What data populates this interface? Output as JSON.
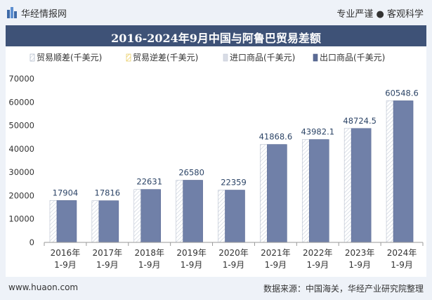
{
  "header": {
    "brand": "华经情报网",
    "tagline": "专业严谨 ● 客观科学"
  },
  "footer": {
    "url": "www.huaon.com",
    "source": "数据来源：中国海关，华经产业研究院整理"
  },
  "colors": {
    "title_bg": "#3e5277",
    "bar_fill": "#7080a8",
    "bar_shade": "#e6e9ef",
    "label_color": "#2d4567",
    "axis_color": "#555555",
    "grid_color": "#e6e6e6"
  },
  "chart_data": {
    "type": "bar",
    "title": "2016-2024年9月中国与阿鲁巴贸易差额",
    "legend": [
      {
        "name": "贸易顺差(千美元)",
        "style": "hatch"
      },
      {
        "name": "贸易逆差(千美元)",
        "style": "hatch-yellow"
      },
      {
        "name": "进口商品(千美元)",
        "style": "light"
      },
      {
        "name": "出口商品(千美元)",
        "style": "solid"
      }
    ],
    "legend_position": "top",
    "categories": [
      "2016年\n1-9月",
      "2017年\n1-9月",
      "2018年\n1-9月",
      "2019年\n1-9月",
      "2020年\n1-9月",
      "2021年\n1-9月",
      "2022年\n1-9月",
      "2023年\n1-9月",
      "2024年\n1-9月"
    ],
    "series": [
      {
        "name": "贸易顺差(千美元)",
        "values": [
          17904,
          17816,
          22631,
          26580,
          22359,
          41868.6,
          43982.1,
          48724.5,
          60548.6
        ]
      },
      {
        "name": "出口商品(千美元)",
        "values": [
          17904,
          17816,
          22631,
          26580,
          22359,
          41868.6,
          43982.1,
          48724.5,
          60548.6
        ]
      }
    ],
    "data_labels": [
      "17904",
      "17816",
      "22631",
      "26580",
      "22359",
      "41868.6",
      "43982.1",
      "48724.5",
      "60548.6"
    ],
    "yticks": [
      "0",
      "10000",
      "20000",
      "30000",
      "40000",
      "50000",
      "60000",
      "70000"
    ],
    "ylim": [
      0,
      70000
    ],
    "grid": false
  }
}
